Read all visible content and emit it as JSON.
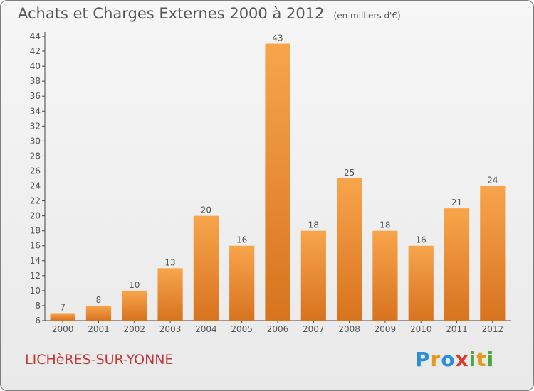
{
  "title": "Achats et Charges Externes 2000 à 2012",
  "subtitle": "(en milliers d'€)",
  "commune": "LICHèRES-SUR-YONNE",
  "logo": {
    "text": "Proxiti",
    "letters": [
      {
        "char": "P",
        "color": "#2a8fd6"
      },
      {
        "char": "r",
        "color": "#e39a1f"
      },
      {
        "char": "o",
        "color": "#2a8fd6"
      },
      {
        "char": "x",
        "color": "#e0362c"
      },
      {
        "char": "i",
        "color": "#49a83b"
      },
      {
        "char": "t",
        "color": "#e39a1f"
      },
      {
        "char": "i",
        "color": "#49a83b"
      }
    ]
  },
  "colors": {
    "bar_top": "#f7a54b",
    "bar_bottom": "#d8731e",
    "text": "#555555",
    "commune": "#c0393b"
  },
  "chart_data": {
    "type": "bar",
    "categories": [
      "2000",
      "2001",
      "2002",
      "2003",
      "2004",
      "2005",
      "2006",
      "2007",
      "2008",
      "2009",
      "2010",
      "2011",
      "2012"
    ],
    "values": [
      7,
      8,
      10,
      13,
      20,
      16,
      43,
      18,
      25,
      18,
      16,
      21,
      24
    ],
    "ylim": [
      6,
      44
    ],
    "yticks": [
      6,
      8,
      10,
      12,
      14,
      16,
      18,
      20,
      22,
      24,
      26,
      28,
      30,
      32,
      34,
      36,
      38,
      40,
      42,
      44
    ],
    "grid": false,
    "data_labels": true,
    "xlabel": "",
    "ylabel": ""
  }
}
